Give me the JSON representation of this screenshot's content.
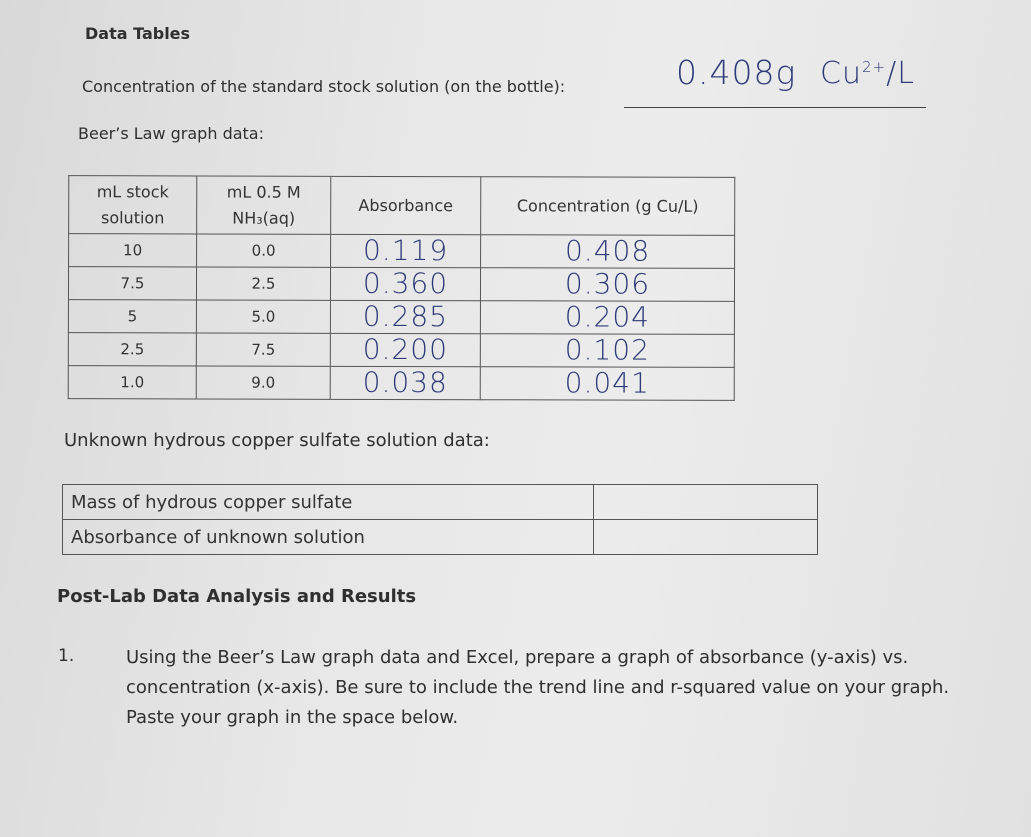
{
  "header": {
    "title": "Data Tables",
    "stock_label": "Concentration of the standard stock solution (on the bottle):",
    "stock_value": "0.408g",
    "stock_unit": "Cu",
    "stock_unit_sup": "2+",
    "stock_unit_tail": "/L",
    "beer_label": "Beer’s Law graph data:"
  },
  "beer_table": {
    "headers": {
      "ml_stock_line1": "mL stock",
      "ml_stock_line2": "solution",
      "nh3_line1": "mL 0.5 M",
      "nh3_line2": "NH₃(aq)",
      "absorbance": "Absorbance",
      "concentration": "Concentration (g Cu/L)"
    },
    "rows": [
      {
        "ml_stock": "10",
        "ml_nh3": "0.0",
        "absorbance": "0.119",
        "concentration": "0.408"
      },
      {
        "ml_stock": "7.5",
        "ml_nh3": "2.5",
        "absorbance": "0.360",
        "concentration": "0.306"
      },
      {
        "ml_stock": "5",
        "ml_nh3": "5.0",
        "absorbance": "0.285",
        "concentration": "0.204"
      },
      {
        "ml_stock": "2.5",
        "ml_nh3": "7.5",
        "absorbance": "0.200",
        "concentration": "0.102"
      },
      {
        "ml_stock": "1.0",
        "ml_nh3": "9.0",
        "absorbance": "0.038",
        "concentration": "0.041"
      }
    ]
  },
  "unknown": {
    "label": "Unknown hydrous copper sulfate solution data:",
    "rows": [
      {
        "label": "Mass of hydrous copper sulfate",
        "value": ""
      },
      {
        "label": "Absorbance of unknown solution",
        "value": ""
      }
    ]
  },
  "post_lab": {
    "title": "Post-Lab Data Analysis and Results",
    "question_number": "1.",
    "question_text": "Using the Beer’s Law graph data and Excel, prepare a graph of absorbance (y-axis) vs. concentration (x-axis). Be sure to include the trend line and r-squared value on your graph. Paste your graph in the space below."
  }
}
